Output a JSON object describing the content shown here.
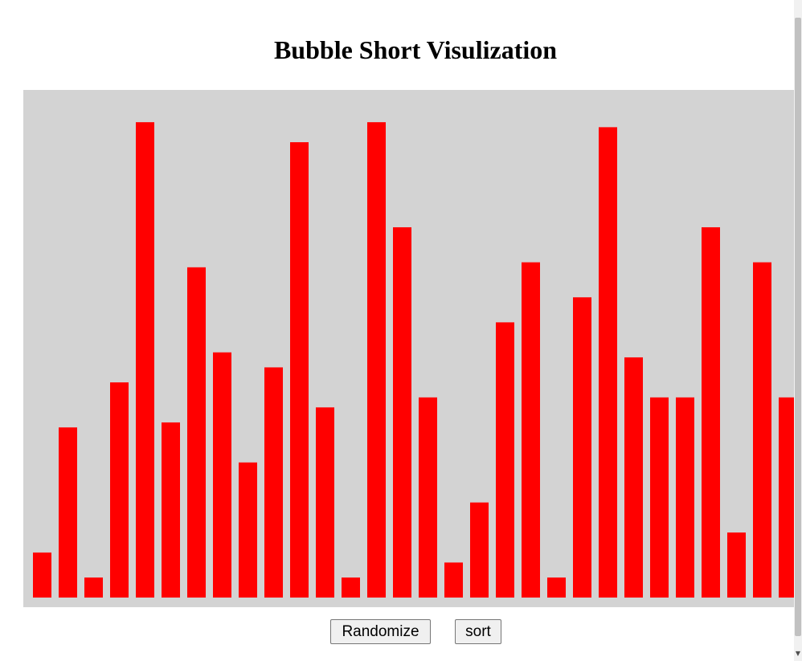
{
  "page": {
    "title": "Bubble Short Visulization"
  },
  "buttons": {
    "randomize_label": "Randomize",
    "sort_label": "sort"
  },
  "colors": {
    "bar": "#ff0000",
    "container_bg": "#d3d3d3"
  },
  "chart_data": {
    "type": "bar",
    "values": [
      9,
      34,
      4,
      43,
      95,
      35,
      66,
      49,
      27,
      46,
      91,
      38,
      4,
      95,
      74,
      40,
      7,
      19,
      55,
      67,
      4,
      60,
      94,
      48,
      40,
      40,
      74,
      13,
      67,
      40
    ],
    "ylim": [
      0,
      100
    ]
  }
}
